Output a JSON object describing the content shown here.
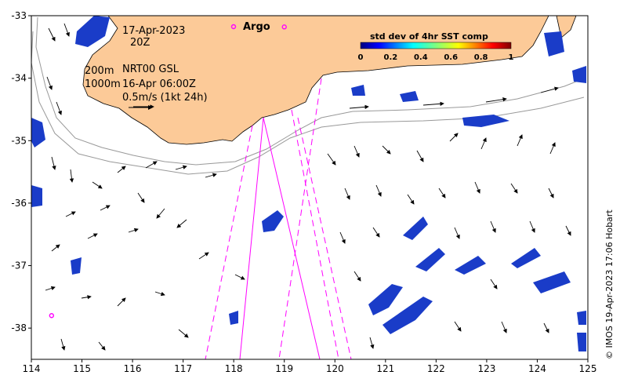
{
  "chart_data": {
    "type": "map",
    "xlim": [
      114,
      125
    ],
    "ylim": [
      -38.5,
      -33
    ],
    "x_ticks": [
      114,
      115,
      116,
      117,
      118,
      119,
      120,
      121,
      122,
      123,
      124,
      125
    ],
    "y_ticks": [
      -33,
      -34,
      -35,
      -36,
      -37,
      -38
    ],
    "annotations": {
      "date": "17-Apr-2023",
      "time": "20Z",
      "depth_200": "200m",
      "depth_1000": "1000m",
      "product": "NRT00 GSL",
      "product_time": "16-Apr 06:00Z",
      "scale": "0.5m/s (1kt 24h)"
    },
    "legend": {
      "argo_label": "Argo",
      "argo_color": "#ff00ff"
    },
    "colorbar": {
      "title": "std dev of 4hr SST comp",
      "ticks": [
        "0",
        "0.2",
        "0.4",
        "0.6",
        "0.8",
        "1"
      ],
      "range": [
        0,
        1
      ]
    },
    "argo_floats": [
      {
        "lon": 119.0,
        "lat": -33.18
      },
      {
        "lon": 114.4,
        "lat": -37.8
      }
    ],
    "land_color": "#fcca98",
    "track_color": "#ff00ff",
    "contour_color": "#999999"
  },
  "credit": "© IMOS 19-Apr-2023 17:06 Hobart"
}
